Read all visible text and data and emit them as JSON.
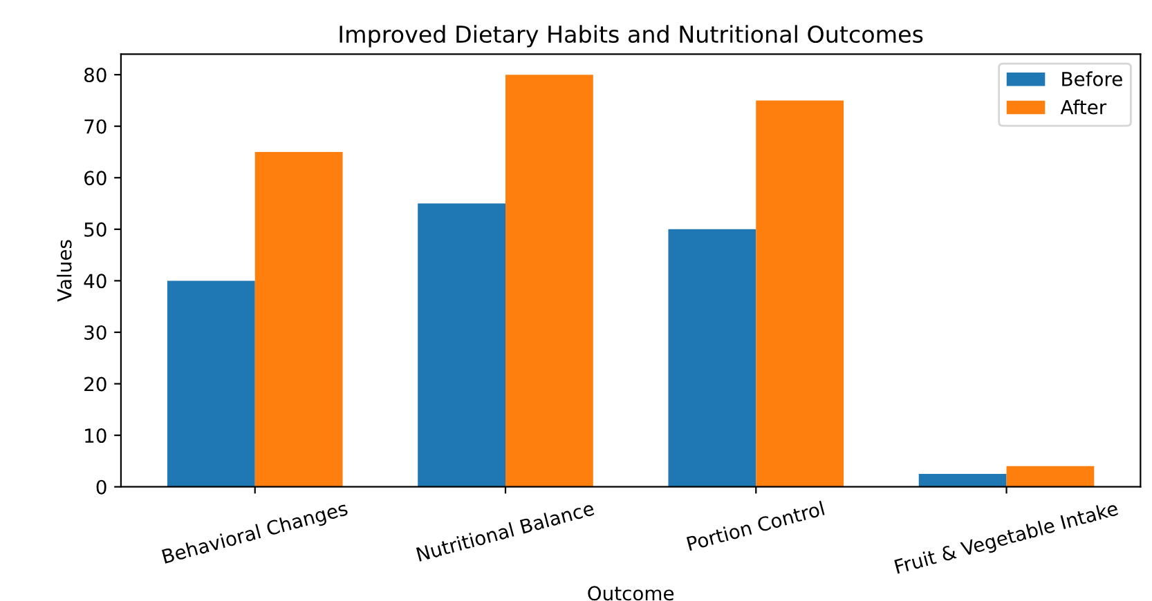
{
  "chart_data": {
    "type": "bar",
    "title": "Improved Dietary Habits and Nutritional Outcomes",
    "xlabel": "Outcome",
    "ylabel": "Values",
    "categories": [
      "Behavioral Changes",
      "Nutritional Balance",
      "Portion Control",
      "Fruit & Vegetable Intake"
    ],
    "series": [
      {
        "name": "Before",
        "color": "#1f77b4",
        "values": [
          40,
          55,
          50,
          2.5
        ]
      },
      {
        "name": "After",
        "color": "#ff7f0e",
        "values": [
          65,
          80,
          75,
          4
        ]
      }
    ],
    "ylim": [
      0,
      84
    ],
    "yticks": [
      0,
      10,
      20,
      30,
      40,
      50,
      60,
      70,
      80
    ],
    "legend": "upper right",
    "grid": false
  }
}
